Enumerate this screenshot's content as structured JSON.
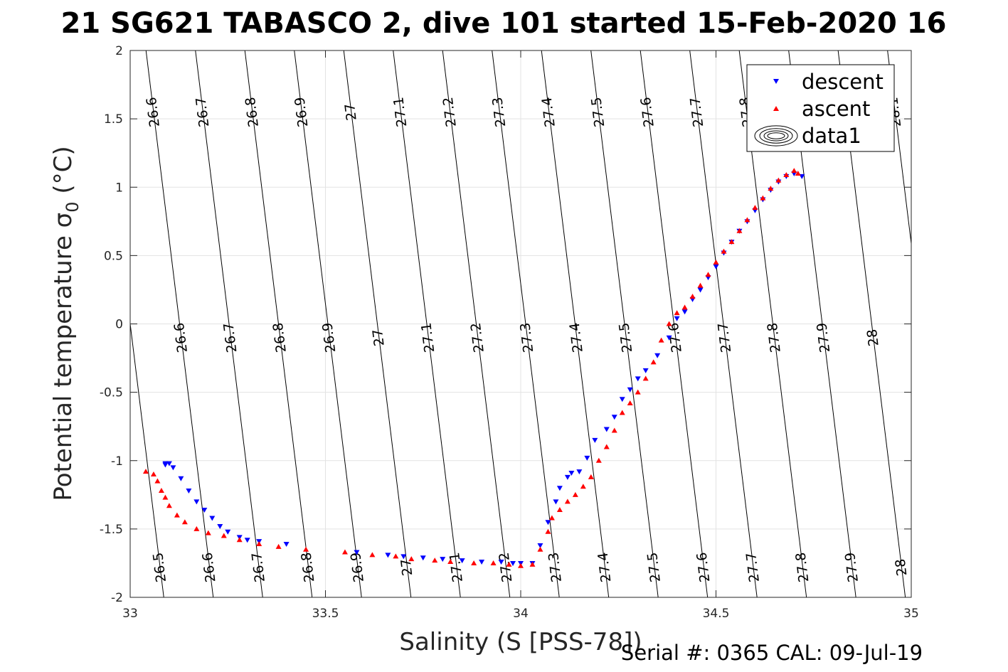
{
  "chart_data": {
    "type": "scatter",
    "title": "21 SG621 TABASCO 2, dive 101 started 15-Feb-2020 16",
    "xlabel": "Salinity (S [PSS-78])",
    "ylabel": "Potential temperature σ",
    "ylabel_sub": "0",
    "ylabel_unit": " (°C)",
    "xlim": [
      33,
      35
    ],
    "ylim": [
      -2,
      2
    ],
    "xticks": [
      "33",
      "33.5",
      "34",
      "34.5",
      "35"
    ],
    "yticks": [
      "-2",
      "-1.5",
      "-1",
      "-0.5",
      "0",
      "0.5",
      "1",
      "1.5",
      "2"
    ],
    "grid": true,
    "legend": {
      "position": "top-right",
      "entries": [
        {
          "name": "descent",
          "color": "#0000ff",
          "marker": "triangle-down"
        },
        {
          "name": "ascent",
          "color": "#ff0000",
          "marker": "triangle-up"
        },
        {
          "name": "data1",
          "color": "#000000",
          "marker": "contour"
        }
      ]
    },
    "contour_levels": [
      "26.5",
      "26.6",
      "26.7",
      "26.8",
      "26.9",
      "27",
      "27.1",
      "27.2",
      "27.3",
      "27.4",
      "27.5",
      "27.6",
      "27.7",
      "27.8",
      "27.9",
      "28",
      "28.1"
    ],
    "series": [
      {
        "name": "descent",
        "color": "#0000ff",
        "points": [
          [
            33.09,
            -1.02
          ],
          [
            33.09,
            -1.03
          ],
          [
            33.1,
            -1.02
          ],
          [
            33.11,
            -1.05
          ],
          [
            33.13,
            -1.13
          ],
          [
            33.15,
            -1.22
          ],
          [
            33.17,
            -1.3
          ],
          [
            33.19,
            -1.36
          ],
          [
            33.21,
            -1.42
          ],
          [
            33.23,
            -1.48
          ],
          [
            33.25,
            -1.52
          ],
          [
            33.28,
            -1.56
          ],
          [
            33.3,
            -1.58
          ],
          [
            33.33,
            -1.59
          ],
          [
            33.4,
            -1.61
          ],
          [
            33.58,
            -1.67
          ],
          [
            33.66,
            -1.69
          ],
          [
            33.7,
            -1.7
          ],
          [
            33.75,
            -1.71
          ],
          [
            33.8,
            -1.72
          ],
          [
            33.85,
            -1.73
          ],
          [
            33.9,
            -1.74
          ],
          [
            33.95,
            -1.74
          ],
          [
            33.98,
            -1.75
          ],
          [
            34.0,
            -1.75
          ],
          [
            34.03,
            -1.75
          ],
          [
            34.05,
            -1.62
          ],
          [
            34.07,
            -1.45
          ],
          [
            34.09,
            -1.3
          ],
          [
            34.1,
            -1.2
          ],
          [
            34.12,
            -1.12
          ],
          [
            34.13,
            -1.09
          ],
          [
            34.15,
            -1.08
          ],
          [
            34.17,
            -0.98
          ],
          [
            34.19,
            -0.85
          ],
          [
            34.22,
            -0.77
          ],
          [
            34.24,
            -0.68
          ],
          [
            34.26,
            -0.55
          ],
          [
            34.28,
            -0.48
          ],
          [
            34.3,
            -0.4
          ],
          [
            34.32,
            -0.34
          ],
          [
            34.35,
            -0.23
          ],
          [
            34.38,
            -0.1
          ],
          [
            34.4,
            0.04
          ],
          [
            34.42,
            0.09
          ],
          [
            34.44,
            0.18
          ],
          [
            34.46,
            0.25
          ],
          [
            34.48,
            0.34
          ],
          [
            34.5,
            0.42
          ],
          [
            34.52,
            0.52
          ],
          [
            34.54,
            0.6
          ],
          [
            34.56,
            0.68
          ],
          [
            34.58,
            0.75
          ],
          [
            34.6,
            0.83
          ],
          [
            34.62,
            0.91
          ],
          [
            34.64,
            0.98
          ],
          [
            34.66,
            1.04
          ],
          [
            34.68,
            1.08
          ],
          [
            34.7,
            1.1
          ],
          [
            34.72,
            1.08
          ]
        ]
      },
      {
        "name": "ascent",
        "color": "#ff0000",
        "points": [
          [
            33.04,
            -1.08
          ],
          [
            33.06,
            -1.1
          ],
          [
            33.07,
            -1.15
          ],
          [
            33.08,
            -1.22
          ],
          [
            33.09,
            -1.27
          ],
          [
            33.1,
            -1.33
          ],
          [
            33.12,
            -1.4
          ],
          [
            33.14,
            -1.45
          ],
          [
            33.17,
            -1.5
          ],
          [
            33.2,
            -1.53
          ],
          [
            33.24,
            -1.55
          ],
          [
            33.28,
            -1.58
          ],
          [
            33.33,
            -1.61
          ],
          [
            33.38,
            -1.63
          ],
          [
            33.45,
            -1.65
          ],
          [
            33.55,
            -1.67
          ],
          [
            33.62,
            -1.69
          ],
          [
            33.68,
            -1.7
          ],
          [
            33.72,
            -1.72
          ],
          [
            33.78,
            -1.73
          ],
          [
            33.82,
            -1.74
          ],
          [
            33.88,
            -1.75
          ],
          [
            33.93,
            -1.75
          ],
          [
            33.97,
            -1.76
          ],
          [
            34.0,
            -1.77
          ],
          [
            34.03,
            -1.76
          ],
          [
            34.05,
            -1.65
          ],
          [
            34.07,
            -1.52
          ],
          [
            34.08,
            -1.42
          ],
          [
            34.1,
            -1.36
          ],
          [
            34.12,
            -1.3
          ],
          [
            34.14,
            -1.25
          ],
          [
            34.16,
            -1.19
          ],
          [
            34.18,
            -1.12
          ],
          [
            34.2,
            -1.0
          ],
          [
            34.22,
            -0.9
          ],
          [
            34.24,
            -0.78
          ],
          [
            34.26,
            -0.65
          ],
          [
            34.28,
            -0.58
          ],
          [
            34.3,
            -0.5
          ],
          [
            34.32,
            -0.4
          ],
          [
            34.34,
            -0.28
          ],
          [
            34.36,
            -0.12
          ],
          [
            34.38,
            0.0
          ],
          [
            34.4,
            0.08
          ],
          [
            34.42,
            0.12
          ],
          [
            34.44,
            0.2
          ],
          [
            34.46,
            0.28
          ],
          [
            34.48,
            0.36
          ],
          [
            34.5,
            0.45
          ],
          [
            34.52,
            0.53
          ],
          [
            34.54,
            0.6
          ],
          [
            34.56,
            0.68
          ],
          [
            34.58,
            0.76
          ],
          [
            34.6,
            0.85
          ],
          [
            34.62,
            0.92
          ],
          [
            34.64,
            0.99
          ],
          [
            34.66,
            1.05
          ],
          [
            34.68,
            1.09
          ],
          [
            34.7,
            1.12
          ],
          [
            34.71,
            1.1
          ]
        ]
      }
    ],
    "annotation": "Serial #: 0365  CAL: 09-Jul-19"
  }
}
